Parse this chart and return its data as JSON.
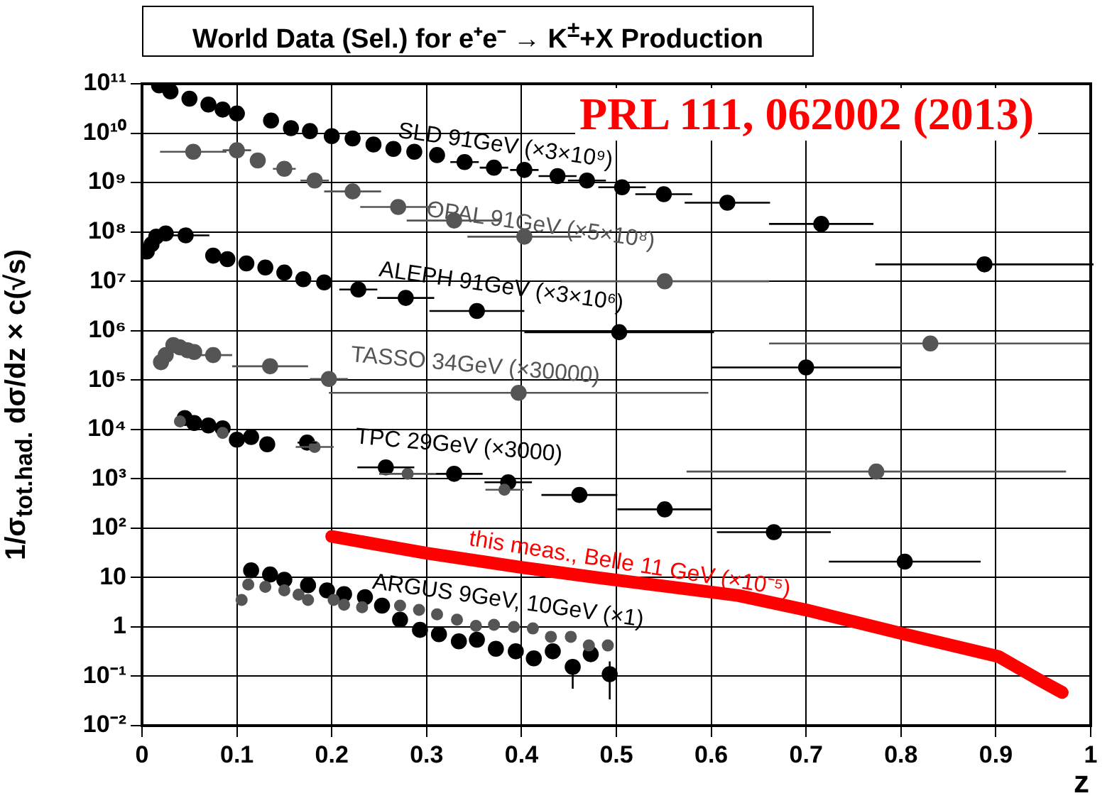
{
  "chart_data": {
    "type": "scatter",
    "title": "World Data (Sel.) for e⁺e⁻ → K$^{±}$+X Production",
    "xlabel": "z",
    "ylabel": "1/σ$_{tot.had.}$ dσ/dz × c(√s)",
    "log": "y",
    "grid": true,
    "legend": false,
    "marker": "circle",
    "xlim": [
      0,
      1
    ],
    "xticks": [
      0,
      0.1,
      0.2,
      0.3,
      0.4,
      0.5,
      0.6,
      0.7,
      0.8,
      0.9,
      1
    ],
    "ylim": [
      0.01,
      100000000000
    ],
    "yticks": [
      {
        "value": 0.01,
        "label": "10⁻²"
      },
      {
        "value": 0.1,
        "label": "10⁻¹"
      },
      1,
      10,
      {
        "value": 100,
        "label": "10²"
      },
      {
        "value": 1000,
        "label": "10³"
      },
      {
        "value": 10000,
        "label": "10⁴"
      },
      {
        "value": 100000,
        "label": "10⁵"
      },
      {
        "value": 1000000,
        "label": "10⁶"
      },
      {
        "value": 10000000,
        "label": "10⁷"
      },
      {
        "value": 100000000,
        "label": "10⁸"
      },
      {
        "value": 1000000000,
        "label": "10⁹"
      },
      {
        "value": 10000000000,
        "label": "10¹⁰"
      },
      {
        "value": 100000000000,
        "label": "10¹¹"
      }
    ],
    "annotations": [
      "PRL 111, 062002 (2013)"
    ],
    "series": [
      {
        "name": "SLD 91GeV (×3×10⁹)",
        "color": "#000000",
        "x": [
          0.018,
          0.03,
          0.05,
          0.07,
          0.085,
          0.1,
          0.136,
          0.157,
          0.177,
          0.2,
          0.222,
          0.244,
          0.265,
          0.287,
          0.311,
          0.34,
          0.371,
          0.403,
          0.438,
          0.469,
          0.506,
          0.55,
          0.617,
          0.716,
          0.888
        ],
        "values": [
          93000000000,
          70000000000,
          50000000000,
          38000000000,
          30000000000,
          25000000000,
          18000000000,
          12600000000,
          11000000000,
          8700000000,
          7800000000,
          5900000000,
          4800000000,
          4200000000,
          3600000000,
          2600000000,
          2000000000,
          1800000000,
          1350000000,
          1100000000,
          800000000,
          580000000,
          390000000,
          145000000,
          22000000
        ],
        "xerrors": [
          null,
          null,
          null,
          null,
          null,
          null,
          null,
          null,
          null,
          null,
          null,
          null,
          null,
          null,
          null,
          0.015,
          0.015,
          0.015,
          0.02,
          0.02,
          0.025,
          0.03,
          0.045,
          0.055,
          0.115
        ]
      },
      {
        "name": "OPAL 91GeV (×5×10⁸)",
        "color": "#555555",
        "x": [
          0.054,
          0.1,
          0.122,
          0.15,
          0.182,
          0.222,
          0.27,
          0.329,
          0.403,
          0.551,
          0.831
        ],
        "values": [
          4200000000,
          4500000000,
          2800000000,
          1900000000,
          1100000000,
          660000000,
          320000000,
          170000000,
          80000000,
          10000000,
          550000
        ],
        "xerrors": [
          0.035,
          0.015,
          null,
          0.012,
          0.015,
          0.03,
          0.04,
          0.05,
          0.06,
          0.11,
          0.17
        ]
      },
      {
        "name": "ALEPH 91GeV (×3×10⁶)",
        "color": "#000000",
        "x": [
          0.005,
          0.01,
          0.015,
          0.025,
          0.046,
          0.075,
          0.09,
          0.11,
          0.13,
          0.15,
          0.17,
          0.192,
          0.228,
          0.278,
          0.353,
          0.503,
          0.7
        ],
        "values": [
          40000000,
          56000000,
          80000000,
          93000000,
          85000000,
          33000000,
          28000000,
          23000000,
          19000000,
          15000000,
          11000000,
          9500000,
          6800000,
          4600000,
          2500000,
          930000,
          180000
        ],
        "xerrors": [
          null,
          null,
          null,
          null,
          0.025,
          null,
          null,
          null,
          null,
          null,
          null,
          null,
          0.02,
          0.03,
          0.05,
          0.1,
          0.1
        ]
      },
      {
        "name": "TASSO 34GeV (×30000)",
        "color": "#555555",
        "x": [
          0.02,
          0.025,
          0.033,
          0.04,
          0.048,
          0.055,
          0.075,
          0.135,
          0.197,
          0.397,
          0.774
        ],
        "values": [
          230000,
          320000,
          510000,
          460000,
          400000,
          370000,
          320000,
          190000,
          105000,
          55000,
          1400
        ],
        "xerrors": [
          null,
          null,
          null,
          null,
          null,
          null,
          0.02,
          0.04,
          0.02,
          0.2,
          0.2
        ]
      },
      {
        "name": "TPC 29GeV (×3000)",
        "color": "#000000",
        "x": [
          0.045,
          0.055,
          0.07,
          0.085,
          0.1,
          0.115,
          0.132,
          0.174,
          0.257,
          0.329,
          0.386,
          0.461,
          0.551,
          0.666,
          0.804
        ],
        "values": [
          17000,
          13500,
          12000,
          10500,
          6200,
          7000,
          5000,
          5400,
          1700,
          1260,
          850,
          470,
          240,
          83,
          21
        ],
        "xerrors": [
          null,
          null,
          null,
          null,
          null,
          null,
          null,
          0.01,
          0.03,
          0.03,
          0.025,
          0.04,
          0.05,
          0.06,
          0.08
        ]
      },
      {
        "color": "#555555",
        "x": [
          0.04,
          0.085,
          0.182,
          0.28,
          0.382
        ],
        "values": [
          14500,
          8500,
          4400,
          1260,
          600
        ],
        "xerrors": [
          null,
          null,
          0.02,
          0.03,
          0.02
        ]
      },
      {
        "name": "this meas., Belle 11 GeV (×10⁻⁵)",
        "type": "line",
        "color": "#ff0000",
        "marker": "none",
        "x": [
          0.2,
          0.3,
          0.4,
          0.479,
          0.629,
          0.7,
          0.804,
          0.903,
          0.948,
          0.97
        ],
        "values": [
          68,
          31,
          16,
          10,
          4.3,
          2.2,
          0.71,
          0.25,
          0.08,
          0.047
        ]
      },
      {
        "name": "ARGUS 9GeV, 10GeV (×1)",
        "color": "#000000",
        "x": [
          0.115,
          0.135,
          0.15,
          0.175,
          0.195,
          0.213,
          0.235,
          0.253,
          0.272,
          0.293,
          0.313,
          0.334,
          0.353,
          0.373,
          0.394,
          0.413,
          0.433,
          0.454,
          0.473,
          0.493
        ],
        "values": [
          14,
          11.5,
          9,
          7,
          5.5,
          4.6,
          4,
          2.7,
          1.4,
          0.87,
          0.71,
          0.51,
          0.55,
          0.36,
          0.32,
          0.23,
          0.32,
          0.155,
          0.28,
          0.11
        ],
        "errors": [
          null,
          null,
          null,
          null,
          null,
          null,
          null,
          null,
          null,
          null,
          null,
          null,
          null,
          null,
          null,
          null,
          null,
          [
            0.056,
            0.22
          ],
          null,
          [
            0.034,
            0.2
          ]
        ]
      },
      {
        "color": "#555555",
        "x": [
          0.105,
          0.112,
          0.13,
          0.15,
          0.165,
          0.175,
          0.202,
          0.213,
          0.232,
          0.272,
          0.292,
          0.311,
          0.332,
          0.352,
          0.371,
          0.392,
          0.412,
          0.431,
          0.452,
          0.471,
          0.491
        ],
        "values": [
          3.5,
          7.2,
          6.5,
          5.5,
          4.5,
          3.5,
          3.5,
          2.8,
          2.5,
          2.7,
          2.2,
          1.8,
          1.4,
          1.05,
          1.1,
          1,
          0.93,
          0.63,
          0.63,
          0.42,
          0.42
        ]
      }
    ]
  }
}
